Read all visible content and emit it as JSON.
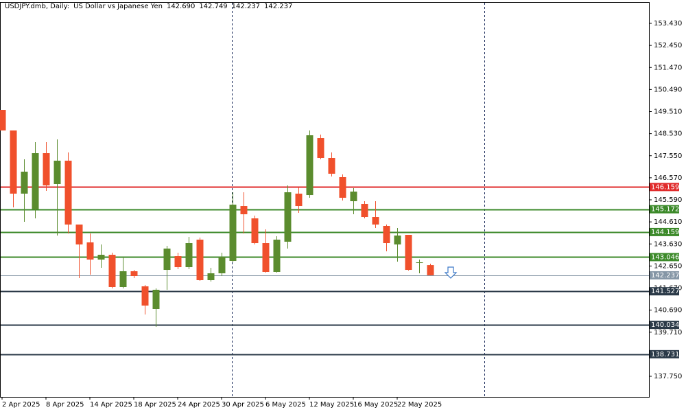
{
  "chart_data": {
    "type": "candlestick",
    "header": {
      "symbol": "USDJPY.dmb, Daily:",
      "description": "US Dollar vs Japanese Yen",
      "ohlc": [
        "142.690",
        "142.749",
        "142.237",
        "142.237"
      ]
    },
    "categories": [
      "2 Apr 2025",
      null,
      null,
      null,
      "8 Apr 2025",
      null,
      null,
      null,
      "14 Apr 2025",
      null,
      null,
      null,
      "18 Apr 2025",
      null,
      null,
      null,
      "24 Apr 2025",
      null,
      null,
      null,
      "30 Apr 2025",
      null,
      null,
      null,
      "6 May 2025",
      null,
      null,
      null,
      "12 May 2025",
      null,
      null,
      null,
      "16 May 2025",
      null,
      null,
      null,
      "22 May 2025",
      null,
      null,
      null
    ],
    "open": [
      149.586,
      148.671,
      145.865,
      145.163,
      147.664,
      146.292,
      147.329,
      144.492,
      143.699,
      142.936,
      143.149,
      141.716,
      142.417,
      141.746,
      140.74,
      142.478,
      143.088,
      142.6,
      143.821,
      142.021,
      142.326,
      142.875,
      145.315,
      144.766,
      143.668,
      142.387,
      143.729,
      145.865,
      145.803,
      148.335,
      147.451,
      146.597,
      145.529,
      145.407,
      144.827,
      144.431,
      143.607,
      144.034,
      142.783,
      142.69
    ],
    "high": [
      149.586,
      148.671,
      147.39,
      148.152,
      148.152,
      148.275,
      147.695,
      144.492,
      144.095,
      143.607,
      143.241,
      143.058,
      142.478,
      141.807,
      141.655,
      143.546,
      143.241,
      143.943,
      143.912,
      142.57,
      143.241,
      145.926,
      145.926,
      144.888,
      144.278,
      143.973,
      146.231,
      146.139,
      148.671,
      148.488,
      147.695,
      146.719,
      146.109,
      145.529,
      145.529,
      144.492,
      144.339,
      144.034,
      142.936,
      142.749
    ],
    "low": [
      148.671,
      145.254,
      144.614,
      144.766,
      145.987,
      144.004,
      144.095,
      142.112,
      142.265,
      142.57,
      141.655,
      141.655,
      142.112,
      140.495,
      139.946,
      141.594,
      142.509,
      142.509,
      141.99,
      141.96,
      142.204,
      142.814,
      144.095,
      143.607,
      142.356,
      142.356,
      143.424,
      145.01,
      145.681,
      147.39,
      146.627,
      145.559,
      144.949,
      144.766,
      144.339,
      143.302,
      142.844,
      142.448,
      142.326,
      142.237
    ],
    "close": [
      148.671,
      145.865,
      146.841,
      147.664,
      146.231,
      147.329,
      144.492,
      143.607,
      142.936,
      143.149,
      141.716,
      142.417,
      142.204,
      140.892,
      141.594,
      143.424,
      142.6,
      143.668,
      142.021,
      142.326,
      143.058,
      145.376,
      144.949,
      143.668,
      142.387,
      143.821,
      145.926,
      145.315,
      148.458,
      147.451,
      146.749,
      145.681,
      145.956,
      144.827,
      144.492,
      143.668,
      144.004,
      142.478,
      142.814,
      142.237
    ],
    "up_color": "#5b8c2e",
    "down_color": "#f0502c",
    "ylim": [
      136.835,
      154.376
    ],
    "yticks": [
      {
        "value": 153.43,
        "label": "153.430"
      },
      {
        "value": 152.45,
        "label": "152.450"
      },
      {
        "value": 151.47,
        "label": "151.470"
      },
      {
        "value": 150.49,
        "label": "150.490"
      },
      {
        "value": 149.51,
        "label": "149.510"
      },
      {
        "value": 148.53,
        "label": "148.530"
      },
      {
        "value": 147.55,
        "label": "147.550"
      },
      {
        "value": 146.57,
        "label": "146.570"
      },
      {
        "value": 145.59,
        "label": "145.590"
      },
      {
        "value": 144.61,
        "label": "144.610"
      },
      {
        "value": 143.63,
        "label": "143.630"
      },
      {
        "value": 142.65,
        "label": "142.650"
      },
      {
        "value": 141.67,
        "label": "141.670"
      },
      {
        "value": 140.69,
        "label": "140.690"
      },
      {
        "value": 139.71,
        "label": "139.710"
      },
      {
        "value": 137.75,
        "label": "137.750"
      }
    ],
    "levels": [
      {
        "value": 146.159,
        "color": "#e02b2b"
      },
      {
        "value": 145.172,
        "color": "#3c8a2a"
      },
      {
        "value": 144.159,
        "color": "#3c8a2a"
      },
      {
        "value": 143.046,
        "color": "#3c8a2a"
      },
      {
        "value": 141.527,
        "color": "#2b3a48"
      },
      {
        "value": 140.034,
        "color": "#2b3a48"
      },
      {
        "value": 138.731,
        "color": "#2b3a48"
      }
    ],
    "current_price": {
      "value": 142.237,
      "color": "#8596a6"
    }
  }
}
